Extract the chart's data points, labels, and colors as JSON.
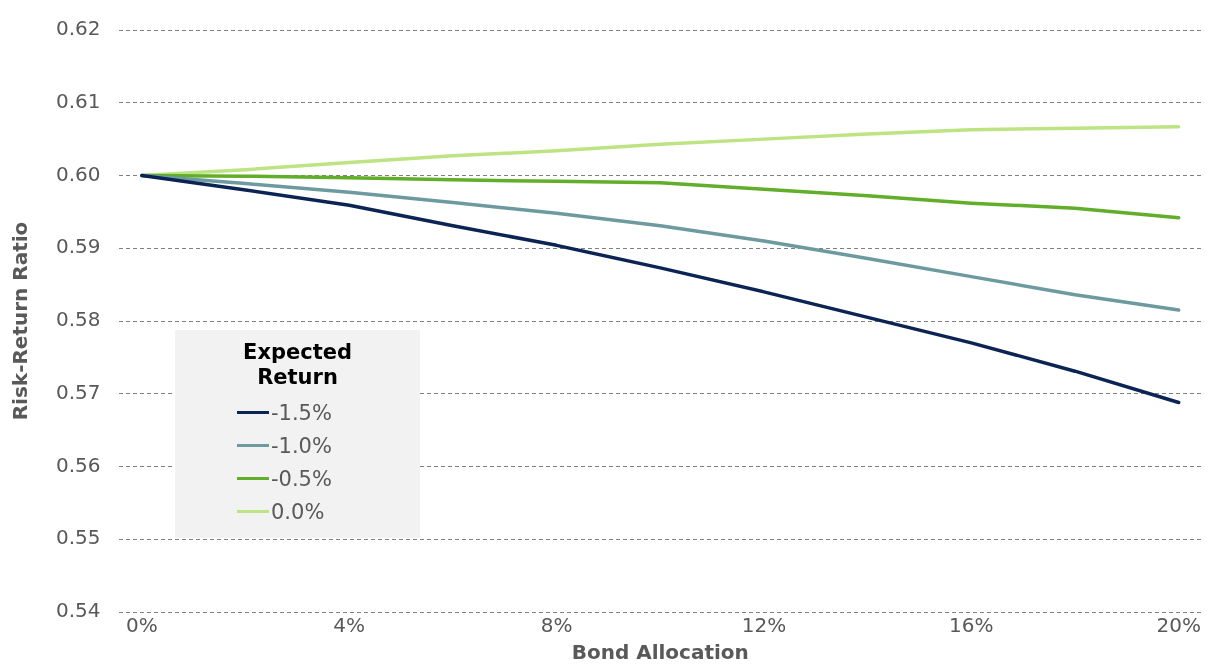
{
  "chart_data": {
    "type": "line",
    "xlabel": "Bond Allocation",
    "ylabel": "Risk-Return Ratio",
    "legend_title": "Expected Return",
    "legend": "bottom left",
    "grid": "y",
    "line_style": "solid",
    "marker": "none",
    "x": [
      0,
      2,
      4,
      6,
      8,
      10,
      12,
      14,
      16,
      18,
      20
    ],
    "xlim": [
      -0.45,
      20.45
    ],
    "xticks": [
      {
        "value": 0,
        "label": "0%"
      },
      {
        "value": 4,
        "label": "4%"
      },
      {
        "value": 8,
        "label": "8%"
      },
      {
        "value": 12,
        "label": "12%"
      },
      {
        "value": 16,
        "label": "16%"
      },
      {
        "value": 20,
        "label": "20%"
      }
    ],
    "ylim": [
      0.54,
      0.62
    ],
    "yticks": [
      0.54,
      0.55,
      0.56,
      0.57,
      0.58,
      0.59,
      {
        "value": 0.6,
        "label": "0.60"
      },
      0.61,
      0.62
    ],
    "series": [
      {
        "name": "-1.5%",
        "color": "#0c2454",
        "values": [
          0.6,
          0.598,
          0.5959,
          0.5931,
          0.5904,
          0.5873,
          0.584,
          0.5805,
          0.577,
          0.5731,
          0.5688
        ]
      },
      {
        "name": "-1.0%",
        "color": "#6d9a9e",
        "values": [
          0.6,
          0.5989,
          0.5977,
          0.5963,
          0.5948,
          0.5931,
          0.591,
          0.5886,
          0.5861,
          0.5836,
          0.5815
        ]
      },
      {
        "name": "-0.5%",
        "color": "#62ae2a",
        "values": [
          0.6,
          0.5999,
          0.5997,
          0.5994,
          0.5992,
          0.599,
          0.5981,
          0.5972,
          0.5962,
          0.5955,
          0.5942
        ]
      },
      {
        "name": "0.0%",
        "color": "#bde383",
        "values": [
          0.6,
          0.6008,
          0.6018,
          0.6027,
          0.6034,
          0.6043,
          0.605,
          0.6057,
          0.6063,
          0.6065,
          0.6067
        ]
      }
    ]
  }
}
